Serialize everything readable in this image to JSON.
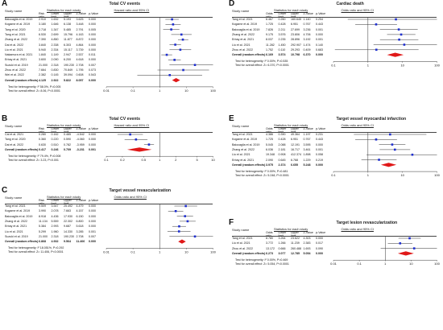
{
  "panels": [
    {
      "id": "A",
      "title": "Total CV events",
      "header": {
        "study": "Study name",
        "stats": "Statistics for each study",
        "effect": "Hazard ratio and 95% CI"
      },
      "columns": [
        "Risk ratio",
        "Lower limit",
        "Upper limit",
        "Z-Value",
        "p-Value"
      ],
      "rows": [
        {
          "study": "Baiocaglia et al. 2019",
          "v": [
            "2.910",
            "1.632",
            "5.193",
            "3.625",
            "0.000"
          ]
        },
        {
          "study": "Kogame et al. 2019",
          "v": [
            "3.180",
            "1.646",
            "6.138",
            "3.448",
            "0.000"
          ]
        },
        {
          "study": "Tang et al. 2020",
          "v": [
            "2.718",
            "1.347",
            "5.485",
            "2.791",
            "0.005"
          ]
        },
        {
          "study": "Tang et al. 2021",
          "v": [
            "6.530",
            "2.699",
            "15.796",
            "4.163",
            "0.000"
          ]
        },
        {
          "study": "Zhang et al. 2022",
          "v": [
            "7.390",
            "4.850",
            "11.877",
            "8.872",
            "0.000"
          ]
        },
        {
          "study": "Dai et al. 2022",
          "v": [
            "3.840",
            "2.338",
            "6.303",
            "4.864",
            "0.000"
          ]
        },
        {
          "study": "Liu et al. 2021",
          "v": [
            "5.940",
            "2.334",
            "15.117",
            "3.739",
            "0.000"
          ]
        },
        {
          "study": "Nakamura et al. 2021",
          "v": [
            "1.840",
            "1.149",
            "2.947",
            "2.537",
            "0.011"
          ]
        },
        {
          "study": "Erbay et al. 2021",
          "v": [
            "3.600",
            "2.090",
            "6.200",
            "4.618",
            "0.000"
          ]
        },
        {
          "study": "Suzuki et al. 2019",
          "v": [
            "21.000",
            "2.318",
            "190.230",
            "2.708",
            "0.007"
          ]
        },
        {
          "study": "Zhou et al. 2022",
          "v": [
            "7.664",
            "0.830",
            "70.849",
            "1.795",
            "0.073"
          ]
        },
        {
          "study": "Wei et al. 2022",
          "v": [
            "2.382",
            "0.145",
            "39.094",
            "0.608",
            "0.543"
          ]
        }
      ],
      "overall": {
        "study": "Overall (random effects)",
        "v": [
          "4.125",
          "2.922",
          "5.822",
          "8.057",
          "0.000"
        ]
      },
      "ticks": [
        "0.01",
        "0.1",
        "1",
        "10",
        "100"
      ],
      "het": "Test for heterogeneity: I² 58.0%, P=0.005",
      "overall_test": "Test for overall effect: Z= 8.06, P<0.0001"
    },
    {
      "id": "B",
      "title": "Total CV events",
      "header": {
        "study": "Study name",
        "stats": "Statistics for each study",
        "effect": "Hazard ratio and 95% CI"
      },
      "columns": [
        "Risk ratio",
        "Lower limit",
        "Upper limit",
        "Z-Value",
        "p-Value"
      ],
      "rows": [
        {
          "study": "Cai et al. 2021",
          "v": [
            "0.280",
            "0.162",
            "0.485",
            "-4.542",
            "0.000"
          ]
        },
        {
          "study": "Tang et al. 2020",
          "v": [
            "0.360",
            "0.220",
            "0.590",
            "-4.060",
            "0.000"
          ]
        },
        {
          "study": "Dai et al. 2022",
          "v": [
            "0.630",
            "0.510",
            "0.782",
            "-3.959",
            "0.000"
          ]
        }
      ],
      "overall": {
        "study": "Overall (random effects)",
        "v": [
          "0.417",
          "0.246",
          "0.709",
          "-3.231",
          "0.001"
        ]
      },
      "ticks": [
        "0.1",
        "0.2",
        "0.5",
        "1",
        "2",
        "5",
        "10"
      ],
      "het": "Test for heterogeneity: I² 79.4%, P=0.008",
      "overall_test": "Test for overall effect: Z= 3.23, P<0.001"
    },
    {
      "id": "C",
      "title": "Target vessel revascularization",
      "header": {
        "study": "Study name",
        "stats": "Statistics for each study",
        "effect": "Odds ratio and 95% CI"
      },
      "columns": [
        "Risk ratio",
        "Lower limit",
        "Upper limit",
        "Z-Value",
        "p-Value"
      ],
      "rows": [
        {
          "study": "Tang et al. 2021",
          "v": [
            "9.509",
            "3.547",
            "25.492",
            "4.479",
            "0.000"
          ]
        },
        {
          "study": "Kogame et al. 2019",
          "v": [
            "3.990",
            "2.078",
            "7.663",
            "4.157",
            "0.000"
          ]
        },
        {
          "study": "Baiocaglia et al. 2019",
          "v": [
            "8.918",
            "4.436",
            "17.930",
            "6.150",
            "0.000"
          ]
        },
        {
          "study": "Zhang et al. 2022",
          "v": [
            "11.134",
            "5.559",
            "22.302",
            "6.800",
            "0.000"
          ]
        },
        {
          "study": "Erbay et al. 2021",
          "v": [
            "5.384",
            "2.993",
            "9.687",
            "5.618",
            "0.000"
          ]
        },
        {
          "study": "Liu et al. 2021",
          "v": [
            "5.299",
            "1.960",
            "14.330",
            "3.285",
            "0.001"
          ]
        },
        {
          "study": "Suzuki et al. 2019",
          "v": [
            "21.000",
            "2.318",
            "190.230",
            "2.708",
            "0.007"
          ]
        }
      ],
      "overall": {
        "study": "Overall (random effects)",
        "v": [
          "6.868",
          "4.932",
          "9.564",
          "11.406",
          "0.000"
        ]
      },
      "ticks": [
        "0.01",
        "0.1",
        "1",
        "10",
        "100"
      ],
      "het": "Test for heterogeneity: I² 18.051%, P=0.292",
      "overall_test": "Test for overall effect: Z= 11.406, P<0.0001"
    },
    {
      "id": "D",
      "title": "Cardiac death",
      "header": {
        "study": "Study name",
        "stats": "Statistics for each study",
        "effect": "Odds ratio and 95% CI"
      },
      "columns": [
        "Odds ratio",
        "Lower limit",
        "Upper limit",
        "Z-Value",
        "p-Value"
      ],
      "rows": [
        {
          "study": "Tang et al. 2021",
          "v": [
            "6.467",
            "0.260",
            "160.645",
            "1.140",
            "0.254"
          ]
        },
        {
          "study": "Kogame et al. 2019",
          "v": [
            "1.725",
            "0.428",
            "6.951",
            "0.767",
            "0.443"
          ]
        },
        {
          "study": "Baiocaglia et al. 2019",
          "v": [
            "7.826",
            "2.211",
            "27.699",
            "3.236",
            "0.001"
          ]
        },
        {
          "study": "Zhang et al. 2022",
          "v": [
            "9.175",
            "3.576",
            "23.806",
            "4.706",
            "0.000"
          ]
        },
        {
          "study": "Erbay et al. 2021",
          "v": [
            "8.037",
            "2.235",
            "28.896",
            "3.192",
            "0.001"
          ]
        },
        {
          "study": "Liu et al. 2021",
          "v": [
            "11.282",
            "1.450",
            "292.907",
            "1.474",
            "0.140"
          ]
        },
        {
          "study": "Zhou et al. 2022",
          "v": [
            "1.752",
            "0.110",
            "29.293",
            "0.409",
            "0.683"
          ]
        }
      ],
      "overall": {
        "study": "Overall (random effects)",
        "v": [
          "6.169",
          "3.574",
          "10.798",
          "6.370",
          "0.000"
        ]
      },
      "ticks": [
        "0.1",
        "1",
        "10",
        "100"
      ],
      "het": "Test for heterogeneity: I² 0.00%, P=0.535",
      "overall_test": "Test for overall effect: Z= 6.370, P<0.0001"
    },
    {
      "id": "E",
      "title": "Target vessel myocardial infarction",
      "header": {
        "study": "Study name",
        "stats": "Statistics for each study",
        "effect": "Odds ratio and 95% CI"
      },
      "columns": [
        "Odds ratio",
        "Lower limit",
        "Upper limit",
        "Z-Value",
        "p-Value"
      ],
      "rows": [
        {
          "study": "Tang et al. 2021",
          "v": [
            "4.386",
            "0.390",
            "49.364",
            "1.197",
            "0.231"
          ]
        },
        {
          "study": "Kogame et al. 2019",
          "v": [
            "1.725",
            "0.428",
            "6.951",
            "0.767",
            "0.443"
          ]
        },
        {
          "study": "Baiocaglia et al. 2019",
          "v": [
            "5.045",
            "2.088",
            "12.191",
            "3.595",
            "0.000"
          ]
        },
        {
          "study": "Zhang et al. 2022",
          "v": [
            "6.036",
            "2.181",
            "16.717",
            "3.461",
            "0.001"
          ]
        },
        {
          "study": "Liu et al. 2021",
          "v": [
            "19.348",
            "0.908",
            "412.374",
            "1.898",
            "0.058"
          ]
        },
        {
          "study": "Erbay et al. 2021",
          "v": [
            "2.090",
            "0.645",
            "6.768",
            "1.229",
            "0.219"
          ]
        }
      ],
      "overall": {
        "study": "Overall (random effects)",
        "v": [
          "3.975",
          "2.374",
          "6.655",
          "5.248",
          "0.000"
        ]
      },
      "ticks": [
        "0.1",
        "1",
        "10",
        "100"
      ],
      "het": "Test for heterogeneity: I² 0.00%, P=0.481",
      "overall_test": "Test for overall effect: Z= 5.248, P<0.0001"
    },
    {
      "id": "F",
      "title": "Target lesion revascularization",
      "header": {
        "study": "Study name",
        "stats": "Statistics for each study",
        "effect": "Odds ratio and 95% CI"
      },
      "columns": [
        "Odds ratio",
        "Lower limit",
        "Upper limit",
        "Z-Value",
        "p-Value"
      ],
      "rows": [
        {
          "study": "Tang et al. 2021",
          "v": [
            "8.780",
            "3.264",
            "23.622",
            "4.303",
            "0.000"
          ]
        },
        {
          "study": "Liu et al. 2021",
          "v": [
            "3.772",
            "1.266",
            "11.239",
            "2.383",
            "0.017"
          ]
        },
        {
          "study": "Zhou et al. 2022",
          "v": [
            "13.172",
            "0.666",
            "260.488",
            "1.693",
            "0.090"
          ]
        }
      ],
      "overall": {
        "study": "Overall (random effects)",
        "v": [
          "6.273",
          "3.077",
          "12.785",
          "5.054",
          "0.000"
        ]
      },
      "ticks": [
        "0.01",
        "0.1",
        "1",
        "10",
        "100"
      ],
      "het": "Test for heterogeneity: I² 0.00%, P=0.469",
      "overall_test": "Test for overall effect: Z= 5.054, P<0.0001"
    }
  ],
  "colors": {
    "square": "#1f2fd0",
    "diamond": "#e01818",
    "line": "#333333"
  }
}
